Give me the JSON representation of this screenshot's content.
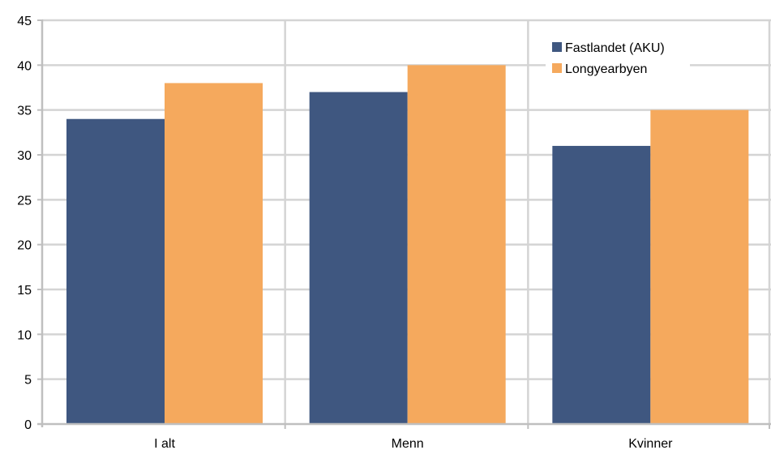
{
  "chart_data": {
    "type": "bar",
    "categories": [
      "I alt",
      "Menn",
      "Kvinner"
    ],
    "series": [
      {
        "name": "Fastlandet (AKU)",
        "values": [
          34,
          37,
          31
        ],
        "color": "#3F5780"
      },
      {
        "name": "Longyearbyen",
        "values": [
          38,
          40,
          35
        ],
        "color": "#F5A95D"
      }
    ],
    "ylim": [
      0,
      45
    ],
    "yticks": [
      0,
      5,
      10,
      15,
      20,
      25,
      30,
      35,
      40,
      45
    ],
    "grid": true,
    "legend_position": "top-right"
  }
}
